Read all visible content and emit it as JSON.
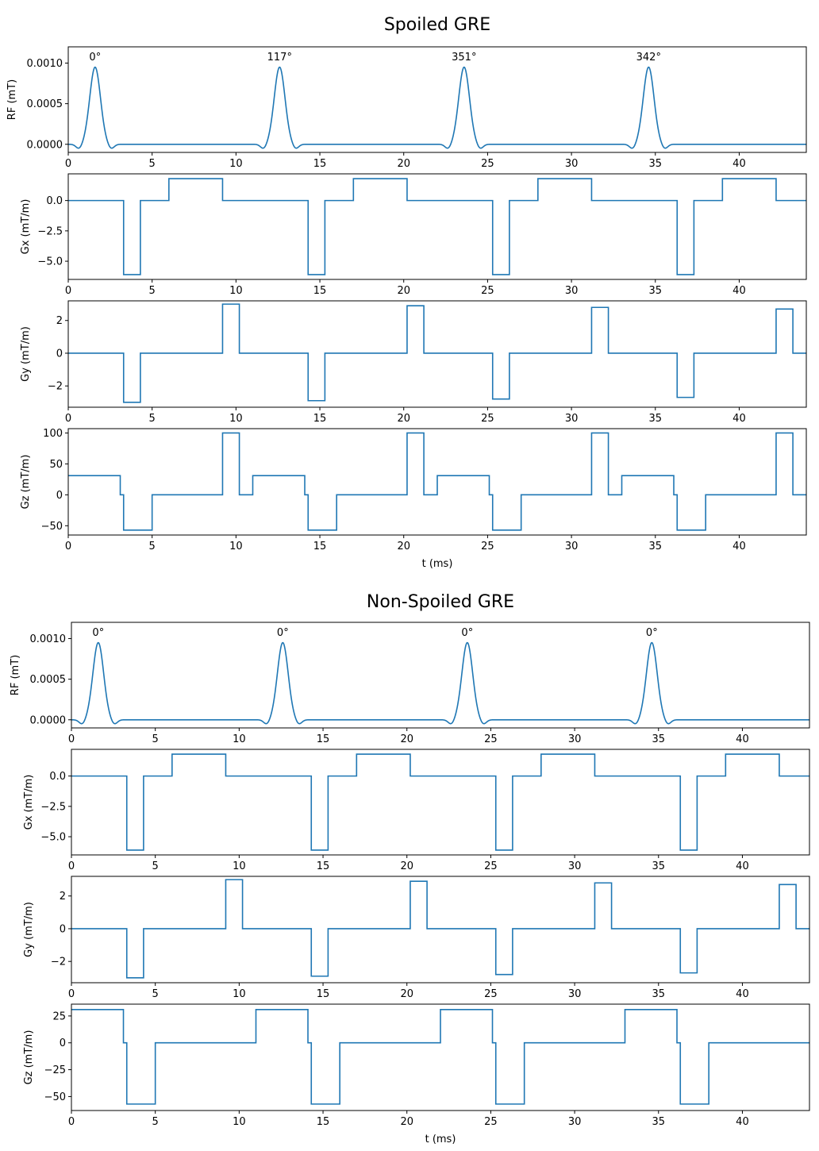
{
  "chart_data": [
    {
      "title": "Spoiled GRE",
      "xlabel": "t (ms)",
      "xlim": [
        0,
        44
      ],
      "xticks": [
        0,
        5,
        10,
        15,
        20,
        25,
        30,
        35,
        40
      ],
      "series_color": "#1f77b4",
      "subplots": [
        {
          "type": "line",
          "name": "RF",
          "ylabel": "RF (mT)",
          "ylim": [
            -0.0001,
            0.0012
          ],
          "yticks": [
            0.0,
            0.0005,
            0.001
          ],
          "ytick_labels": [
            "0.0000",
            "0.0005",
            "0.0010"
          ],
          "pulses": [
            {
              "center": 1.6,
              "amplitude": 0.00095,
              "phase_label": "0°"
            },
            {
              "center": 12.6,
              "amplitude": 0.00095,
              "phase_label": "117°"
            },
            {
              "center": 23.6,
              "amplitude": 0.00095,
              "phase_label": "351°"
            },
            {
              "center": 34.6,
              "amplitude": 0.00095,
              "phase_label": "342°"
            }
          ]
        },
        {
          "type": "line",
          "name": "Gx",
          "ylabel": "Gx (mT/m)",
          "ylim": [
            -6.5,
            2.2
          ],
          "yticks": [
            -5.0,
            -2.5,
            0.0
          ],
          "ytick_labels": [
            "−5.0",
            "−2.5",
            "0.0"
          ],
          "steps": [
            [
              0,
              0
            ],
            [
              3.3,
              -6.1
            ],
            [
              4.3,
              0
            ],
            [
              6.0,
              1.8
            ],
            [
              9.2,
              0
            ],
            [
              14.3,
              -6.1
            ],
            [
              15.3,
              0
            ],
            [
              17.0,
              1.8
            ],
            [
              20.2,
              0
            ],
            [
              25.3,
              -6.1
            ],
            [
              26.3,
              0
            ],
            [
              28.0,
              1.8
            ],
            [
              31.2,
              0
            ],
            [
              36.3,
              -6.1
            ],
            [
              37.3,
              0
            ],
            [
              39.0,
              1.8
            ],
            [
              42.2,
              0
            ],
            [
              44,
              0
            ]
          ]
        },
        {
          "type": "line",
          "name": "Gy",
          "ylabel": "Gy (mT/m)",
          "ylim": [
            -3.3,
            3.2
          ],
          "yticks": [
            -2,
            0,
            2
          ],
          "ytick_labels": [
            "−2",
            "0",
            "2"
          ],
          "steps": [
            [
              0,
              0
            ],
            [
              3.3,
              -3.0
            ],
            [
              4.3,
              0
            ],
            [
              9.2,
              3.0
            ],
            [
              10.2,
              0
            ],
            [
              14.3,
              -2.9
            ],
            [
              15.3,
              0
            ],
            [
              20.2,
              2.9
            ],
            [
              21.2,
              0
            ],
            [
              25.3,
              -2.8
            ],
            [
              26.3,
              0
            ],
            [
              31.2,
              2.8
            ],
            [
              32.2,
              0
            ],
            [
              36.3,
              -2.7
            ],
            [
              37.3,
              0
            ],
            [
              42.2,
              2.7
            ],
            [
              43.2,
              0
            ],
            [
              44,
              0
            ]
          ]
        },
        {
          "type": "line",
          "name": "Gz",
          "ylabel": "Gz (mT/m)",
          "ylim": [
            -65,
            107
          ],
          "yticks": [
            -50,
            0,
            50,
            100
          ],
          "ytick_labels": [
            "−50",
            "0",
            "50",
            "100"
          ],
          "steps": [
            [
              0,
              31
            ],
            [
              3.1,
              0
            ],
            [
              3.3,
              -57
            ],
            [
              5.0,
              0
            ],
            [
              9.2,
              100
            ],
            [
              10.2,
              0
            ],
            [
              11.0,
              31
            ],
            [
              14.1,
              0
            ],
            [
              14.3,
              -57
            ],
            [
              16.0,
              0
            ],
            [
              20.2,
              100
            ],
            [
              21.2,
              0
            ],
            [
              22.0,
              31
            ],
            [
              25.1,
              0
            ],
            [
              25.3,
              -57
            ],
            [
              27.0,
              0
            ],
            [
              31.2,
              100
            ],
            [
              32.2,
              0
            ],
            [
              33.0,
              31
            ],
            [
              36.1,
              0
            ],
            [
              36.3,
              -57
            ],
            [
              38.0,
              0
            ],
            [
              42.2,
              100
            ],
            [
              43.2,
              0
            ],
            [
              44,
              0
            ]
          ]
        }
      ]
    },
    {
      "title": "Non-Spoiled GRE",
      "xlabel": "t (ms)",
      "xlim": [
        0,
        44
      ],
      "xticks": [
        0,
        5,
        10,
        15,
        20,
        25,
        30,
        35,
        40
      ],
      "series_color": "#1f77b4",
      "subplots": [
        {
          "type": "line",
          "name": "RF",
          "ylabel": "RF (mT)",
          "ylim": [
            -0.0001,
            0.0012
          ],
          "yticks": [
            0.0,
            0.0005,
            0.001
          ],
          "ytick_labels": [
            "0.0000",
            "0.0005",
            "0.0010"
          ],
          "pulses": [
            {
              "center": 1.6,
              "amplitude": 0.00095,
              "phase_label": "0°"
            },
            {
              "center": 12.6,
              "amplitude": 0.00095,
              "phase_label": "0°"
            },
            {
              "center": 23.6,
              "amplitude": 0.00095,
              "phase_label": "0°"
            },
            {
              "center": 34.6,
              "amplitude": 0.00095,
              "phase_label": "0°"
            }
          ]
        },
        {
          "type": "line",
          "name": "Gx",
          "ylabel": "Gx (mT/m)",
          "ylim": [
            -6.5,
            2.2
          ],
          "yticks": [
            -5.0,
            -2.5,
            0.0
          ],
          "ytick_labels": [
            "−5.0",
            "−2.5",
            "0.0"
          ],
          "steps": [
            [
              0,
              0
            ],
            [
              3.3,
              -6.1
            ],
            [
              4.3,
              0
            ],
            [
              6.0,
              1.8
            ],
            [
              9.2,
              0
            ],
            [
              14.3,
              -6.1
            ],
            [
              15.3,
              0
            ],
            [
              17.0,
              1.8
            ],
            [
              20.2,
              0
            ],
            [
              25.3,
              -6.1
            ],
            [
              26.3,
              0
            ],
            [
              28.0,
              1.8
            ],
            [
              31.2,
              0
            ],
            [
              36.3,
              -6.1
            ],
            [
              37.3,
              0
            ],
            [
              39.0,
              1.8
            ],
            [
              42.2,
              0
            ],
            [
              44,
              0
            ]
          ]
        },
        {
          "type": "line",
          "name": "Gy",
          "ylabel": "Gy (mT/m)",
          "ylim": [
            -3.3,
            3.2
          ],
          "yticks": [
            -2,
            0,
            2
          ],
          "ytick_labels": [
            "−2",
            "0",
            "2"
          ],
          "steps": [
            [
              0,
              0
            ],
            [
              3.3,
              -3.0
            ],
            [
              4.3,
              0
            ],
            [
              9.2,
              3.0
            ],
            [
              10.2,
              0
            ],
            [
              14.3,
              -2.9
            ],
            [
              15.3,
              0
            ],
            [
              20.2,
              2.9
            ],
            [
              21.2,
              0
            ],
            [
              25.3,
              -2.8
            ],
            [
              26.3,
              0
            ],
            [
              31.2,
              2.8
            ],
            [
              32.2,
              0
            ],
            [
              36.3,
              -2.7
            ],
            [
              37.3,
              0
            ],
            [
              42.2,
              2.7
            ],
            [
              43.2,
              0
            ],
            [
              44,
              0
            ]
          ]
        },
        {
          "type": "line",
          "name": "Gz",
          "ylabel": "Gz (mT/m)",
          "ylim": [
            -63,
            36
          ],
          "yticks": [
            -50,
            -25,
            0,
            25
          ],
          "ytick_labels": [
            "−50",
            "−25",
            "0",
            "25"
          ],
          "steps": [
            [
              0,
              31
            ],
            [
              3.1,
              0
            ],
            [
              3.3,
              -57
            ],
            [
              5.0,
              0
            ],
            [
              11.0,
              31
            ],
            [
              14.1,
              0
            ],
            [
              14.3,
              -57
            ],
            [
              16.0,
              0
            ],
            [
              22.0,
              31
            ],
            [
              25.1,
              0
            ],
            [
              25.3,
              -57
            ],
            [
              27.0,
              0
            ],
            [
              33.0,
              31
            ],
            [
              36.1,
              0
            ],
            [
              36.3,
              -57
            ],
            [
              38.0,
              0
            ],
            [
              44,
              0
            ]
          ]
        }
      ]
    }
  ]
}
